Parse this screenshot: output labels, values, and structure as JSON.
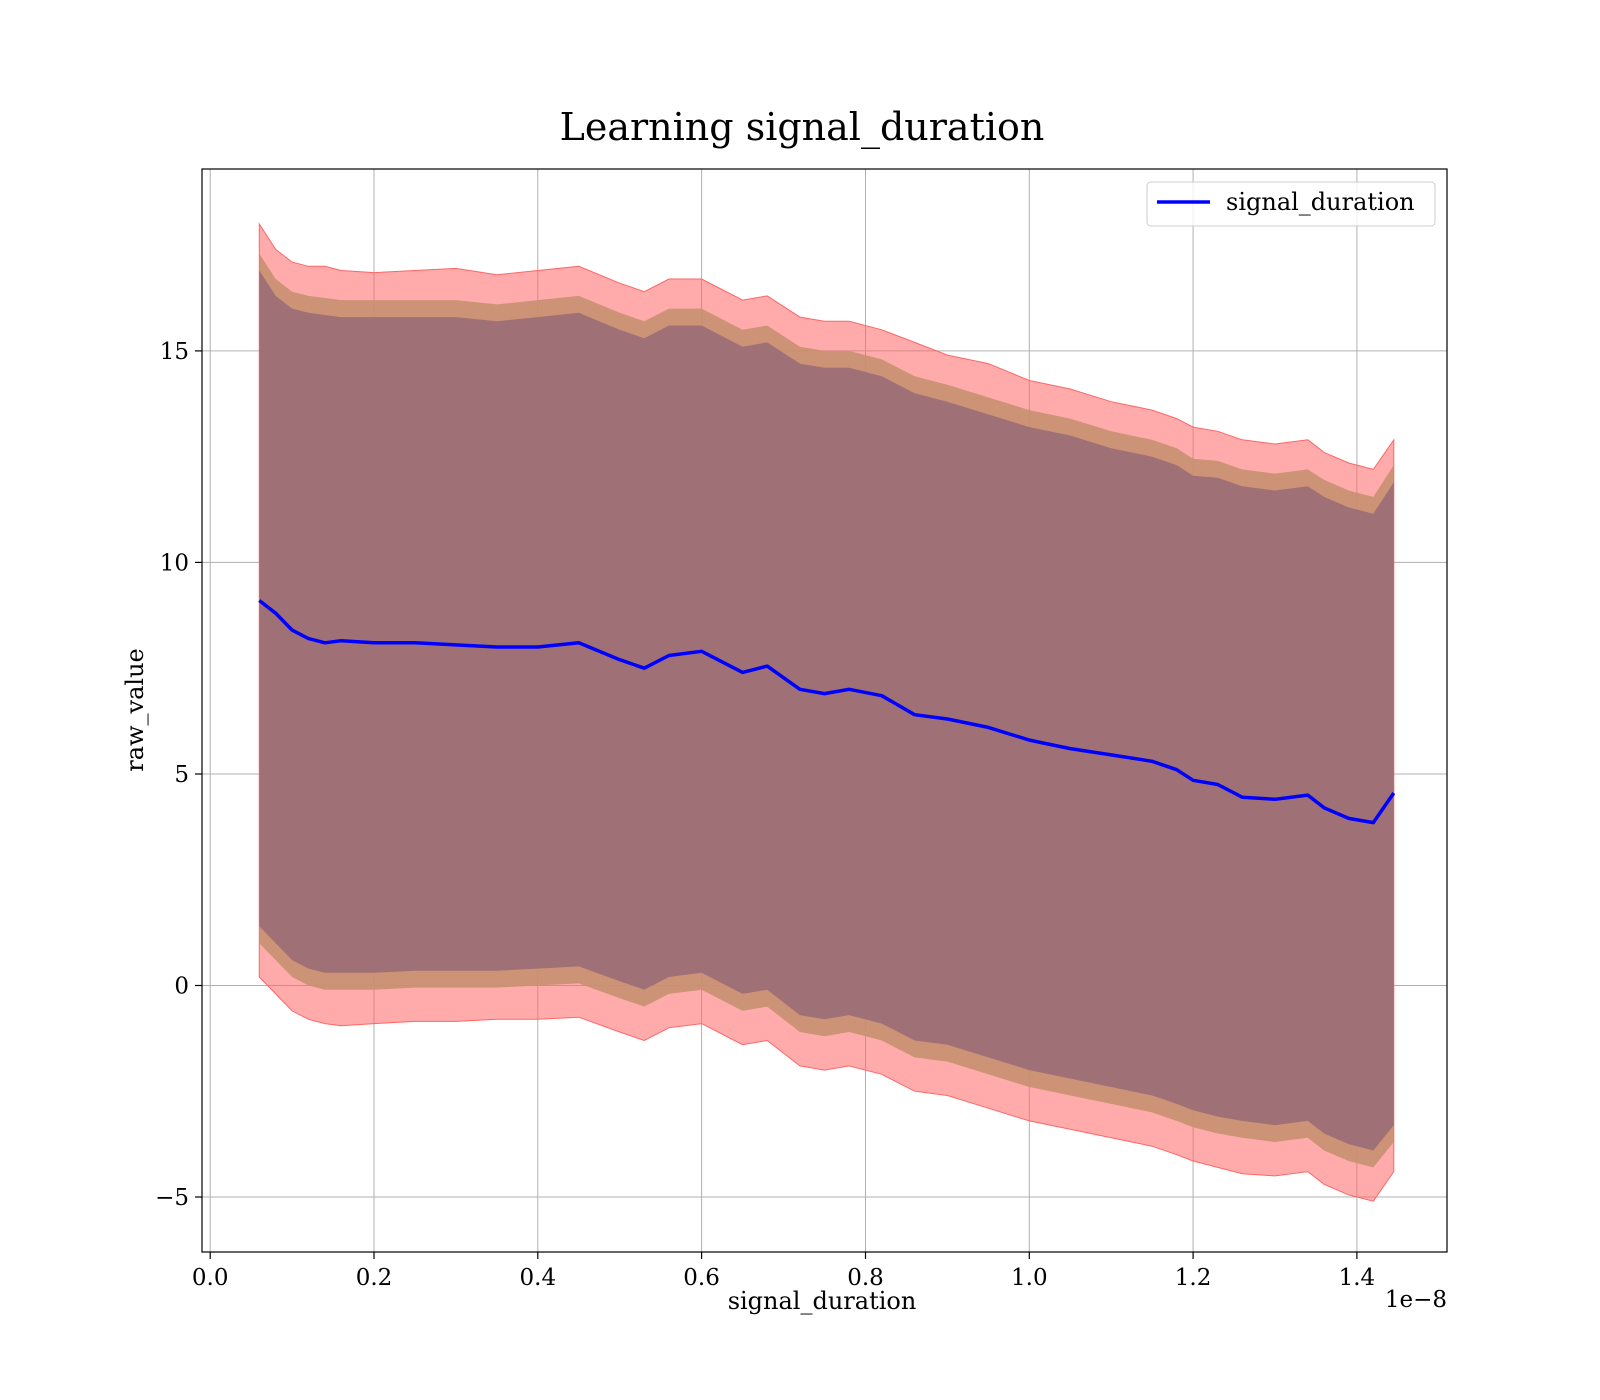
{
  "chart_data": {
    "type": "line",
    "title": "Learning signal_duration",
    "xlabel": "signal_duration",
    "ylabel": "raw_value",
    "x_offset_text": "1e−8",
    "xlim": [
      -1e-10,
      1.51e-08
    ],
    "ylim": [
      -6.3,
      19.3
    ],
    "x_ticks": [
      0.0,
      2e-09,
      4e-09,
      6e-09,
      8e-09,
      1e-08,
      1.2e-08,
      1.4e-08
    ],
    "x_tick_labels": [
      "0.0",
      "0.2",
      "0.4",
      "0.6",
      "0.8",
      "1.0",
      "1.2",
      "1.4"
    ],
    "y_ticks": [
      -5,
      0,
      5,
      10,
      15
    ],
    "y_tick_labels": [
      "−5",
      "0",
      "5",
      "10",
      "15"
    ],
    "grid": true,
    "legend_position": "top-right",
    "colors": {
      "line": "#0000ff",
      "band_outer": "#ff6666",
      "band_middle": "#c89070",
      "band_inner": "#a07077"
    },
    "series": [
      {
        "name": "signal_duration",
        "x": [
          6e-10,
          8e-10,
          1e-09,
          1.2e-09,
          1.4e-09,
          1.6e-09,
          2e-09,
          2.5e-09,
          3e-09,
          3.5e-09,
          4e-09,
          4.5e-09,
          5e-09,
          5.3e-09,
          5.6e-09,
          6e-09,
          6.5e-09,
          6.8e-09,
          7.2e-09,
          7.5e-09,
          7.8e-09,
          8.2e-09,
          8.6e-09,
          9e-09,
          9.5e-09,
          1e-08,
          1.05e-08,
          1.1e-08,
          1.15e-08,
          1.18e-08,
          1.2e-08,
          1.23e-08,
          1.26e-08,
          1.3e-08,
          1.34e-08,
          1.36e-08,
          1.39e-08,
          1.42e-08,
          1.445e-08
        ],
        "y": [
          9.1,
          8.8,
          8.4,
          8.2,
          8.1,
          8.15,
          8.1,
          8.1,
          8.05,
          8.0,
          8.0,
          8.1,
          7.7,
          7.5,
          7.8,
          7.9,
          7.4,
          7.55,
          7.0,
          6.9,
          7.0,
          6.85,
          6.4,
          6.3,
          6.1,
          5.8,
          5.6,
          5.45,
          5.3,
          5.1,
          4.85,
          4.75,
          4.45,
          4.4,
          4.5,
          4.2,
          3.95,
          3.85,
          4.55
        ],
        "band_outer_upper": [
          18.0,
          17.4,
          17.1,
          17.0,
          17.0,
          16.9,
          16.85,
          16.9,
          16.95,
          16.8,
          16.9,
          17.0,
          16.6,
          16.4,
          16.7,
          16.7,
          16.2,
          16.3,
          15.8,
          15.7,
          15.7,
          15.5,
          15.2,
          14.9,
          14.7,
          14.3,
          14.1,
          13.8,
          13.6,
          13.4,
          13.2,
          13.1,
          12.9,
          12.8,
          12.9,
          12.6,
          12.35,
          12.2,
          12.9
        ],
        "band_outer_lower": [
          0.2,
          -0.2,
          -0.6,
          -0.8,
          -0.9,
          -0.95,
          -0.9,
          -0.85,
          -0.85,
          -0.8,
          -0.8,
          -0.75,
          -1.1,
          -1.3,
          -1.0,
          -0.9,
          -1.4,
          -1.3,
          -1.9,
          -2.0,
          -1.9,
          -2.1,
          -2.5,
          -2.6,
          -2.9,
          -3.2,
          -3.4,
          -3.6,
          -3.8,
          -4.0,
          -4.15,
          -4.3,
          -4.45,
          -4.5,
          -4.4,
          -4.7,
          -4.95,
          -5.1,
          -4.4
        ],
        "band_middle_upper": [
          17.3,
          16.7,
          16.4,
          16.3,
          16.25,
          16.2,
          16.2,
          16.2,
          16.2,
          16.1,
          16.2,
          16.3,
          15.9,
          15.7,
          16.0,
          16.0,
          15.5,
          15.6,
          15.1,
          15.0,
          15.0,
          14.8,
          14.4,
          14.2,
          13.9,
          13.6,
          13.4,
          13.1,
          12.9,
          12.7,
          12.45,
          12.4,
          12.2,
          12.1,
          12.2,
          11.95,
          11.7,
          11.55,
          12.3
        ],
        "band_middle_lower": [
          1.0,
          0.6,
          0.2,
          0.0,
          -0.1,
          -0.1,
          -0.1,
          -0.05,
          -0.05,
          -0.05,
          0.0,
          0.05,
          -0.3,
          -0.5,
          -0.2,
          -0.1,
          -0.6,
          -0.5,
          -1.1,
          -1.2,
          -1.1,
          -1.3,
          -1.7,
          -1.8,
          -2.1,
          -2.4,
          -2.6,
          -2.8,
          -3.0,
          -3.2,
          -3.35,
          -3.5,
          -3.6,
          -3.7,
          -3.6,
          -3.9,
          -4.15,
          -4.3,
          -3.7
        ],
        "band_inner_upper": [
          16.9,
          16.3,
          16.0,
          15.9,
          15.85,
          15.8,
          15.8,
          15.8,
          15.8,
          15.7,
          15.8,
          15.9,
          15.5,
          15.3,
          15.6,
          15.6,
          15.1,
          15.2,
          14.7,
          14.6,
          14.6,
          14.4,
          14.0,
          13.8,
          13.5,
          13.2,
          13.0,
          12.7,
          12.5,
          12.3,
          12.05,
          12.0,
          11.8,
          11.7,
          11.8,
          11.55,
          11.3,
          11.15,
          11.9
        ],
        "band_inner_lower": [
          1.4,
          1.0,
          0.6,
          0.4,
          0.3,
          0.3,
          0.3,
          0.35,
          0.35,
          0.35,
          0.4,
          0.45,
          0.1,
          -0.1,
          0.2,
          0.3,
          -0.2,
          -0.1,
          -0.7,
          -0.8,
          -0.7,
          -0.9,
          -1.3,
          -1.4,
          -1.7,
          -2.0,
          -2.2,
          -2.4,
          -2.6,
          -2.8,
          -2.95,
          -3.1,
          -3.2,
          -3.3,
          -3.2,
          -3.5,
          -3.75,
          -3.9,
          -3.3
        ]
      }
    ]
  }
}
